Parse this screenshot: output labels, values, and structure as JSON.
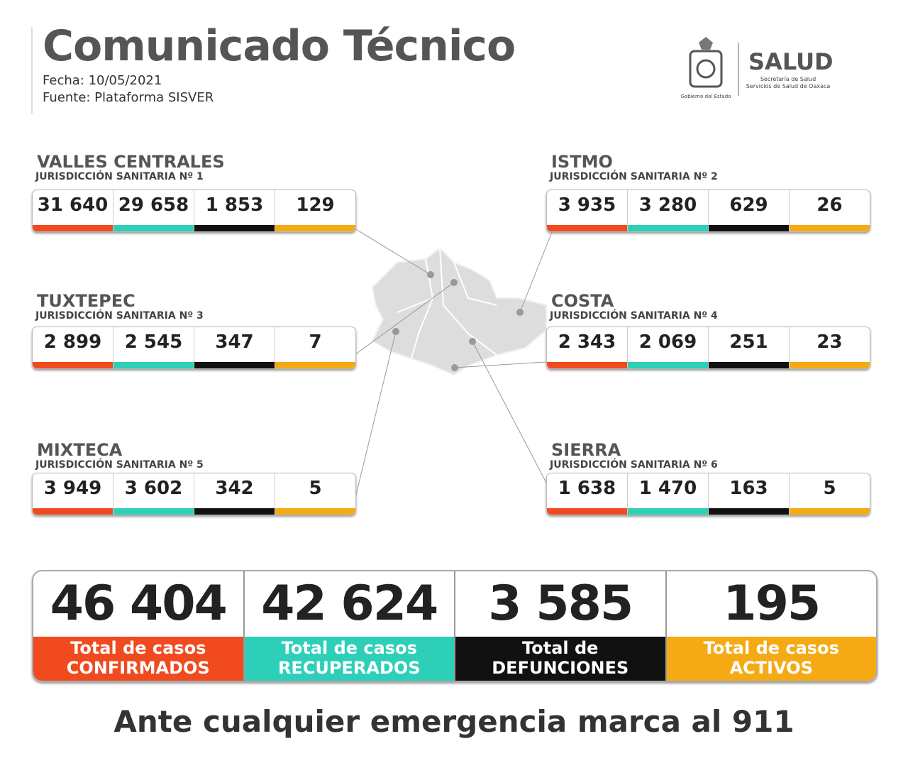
{
  "header": {
    "title": "Comunicado Técnico",
    "date": "Fecha: 10/05/2021",
    "source": "Fuente: Plataforma SISVER"
  },
  "logo": {
    "government": "Gobierno del Estado",
    "brand": "SALUD",
    "line1": "Secretaría de Salud",
    "line2": "Servicios de Salud de Oaxaca"
  },
  "regions": [
    {
      "name": "VALLES CENTRALES",
      "jurisdiction": "JURISDICCIÓN SANITARIA Nº 1",
      "values": [
        "31 640",
        "29 658",
        "1 853",
        "129"
      ]
    },
    {
      "name": "ISTMO",
      "jurisdiction": "JURISDICCIÓN SANITARIA Nº 2",
      "values": [
        "3 935",
        "3 280",
        "629",
        "26"
      ]
    },
    {
      "name": "TUXTEPEC",
      "jurisdiction": "JURISDICCIÓN SANITARIA Nº 3",
      "values": [
        "2 899",
        "2 545",
        "347",
        "7"
      ]
    },
    {
      "name": "COSTA",
      "jurisdiction": "JURISDICCIÓN SANITARIA Nº 4",
      "values": [
        "2 343",
        "2 069",
        "251",
        "23"
      ]
    },
    {
      "name": "MIXTECA",
      "jurisdiction": "JURISDICCIÓN SANITARIA Nº 5",
      "values": [
        "3 949",
        "3 602",
        "342",
        "5"
      ]
    },
    {
      "name": "SIERRA",
      "jurisdiction": "JURISDICCIÓN SANITARIA Nº 6",
      "values": [
        "1 638",
        "1 470",
        "163",
        "5"
      ]
    }
  ],
  "totals": [
    {
      "value": "46 404",
      "label_line1": "Total de casos",
      "label_line2": "CONFIRMADOS"
    },
    {
      "value": "42 624",
      "label_line1": "Total de casos",
      "label_line2": "RECUPERADOS"
    },
    {
      "value": "3 585",
      "label_line1": "Total de",
      "label_line2": "DEFUNCIONES"
    },
    {
      "value": "195",
      "label_line1": "Total de casos",
      "label_line2": "ACTIVOS"
    }
  ],
  "footer": "Ante cualquier emergencia marca al 911"
}
